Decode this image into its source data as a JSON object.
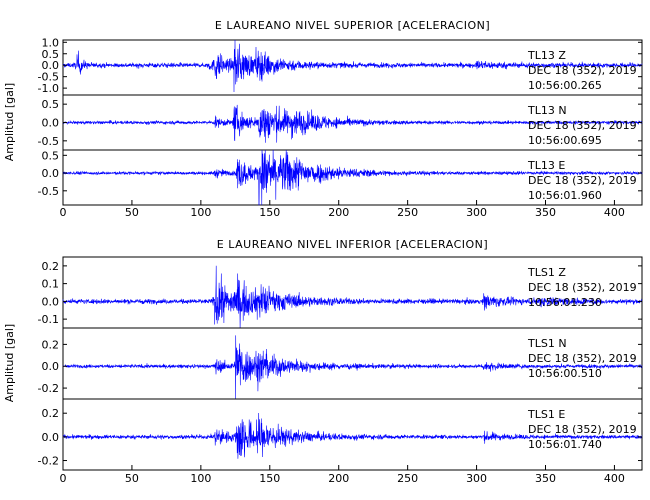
{
  "chart_data": [
    {
      "type": "line",
      "title": "E LAUREANO NIVEL SUPERIOR [ACELERACION]",
      "ylabel": "Amplitud [gal]",
      "xlim": [
        0,
        420
      ],
      "xticks": [
        "0",
        "50",
        "100",
        "150",
        "200",
        "250",
        "300",
        "350",
        "400"
      ],
      "series_color": "#0000ff",
      "traces": [
        {
          "ylim": [
            -1.3,
            1.1
          ],
          "yticks": [
            "1.0",
            "0.5",
            "0.0",
            "-0.5",
            "-1.0"
          ],
          "yticks_values": [
            1.0,
            0.5,
            0.0,
            -0.5,
            -1.0
          ],
          "noise": 0.09,
          "bursts": [
            [
              10,
              0.6,
              1.5
            ],
            [
              105,
              0.15,
              6
            ],
            [
              110,
              0.55,
              3
            ],
            [
              124,
              0.95,
              5
            ],
            [
              140,
              0.4,
              10
            ],
            [
              300,
              0.12,
              8
            ]
          ],
          "annotation": [
            "TL13   Z",
            "DEC 18 (352), 2019",
            "10:56:00.265"
          ]
        },
        {
          "ylim": [
            -0.75,
            0.75
          ],
          "yticks": [
            "0.5",
            "0.0",
            "-0.5"
          ],
          "yticks_values": [
            0.5,
            0.0,
            -0.5
          ],
          "noise": 0.04,
          "bursts": [
            [
              110,
              0.12,
              4
            ],
            [
              124,
              0.45,
              4
            ],
            [
              142,
              0.55,
              12
            ],
            [
              165,
              0.15,
              10
            ]
          ],
          "annotation": [
            "TL13   N",
            "DEC 18 (352), 2019",
            "10:56:00.695"
          ]
        },
        {
          "ylim": [
            -0.9,
            0.65
          ],
          "yticks": [
            "0.5",
            "0.0",
            "-0.5"
          ],
          "yticks_values": [
            0.5,
            0.0,
            -0.5
          ],
          "noise": 0.04,
          "bursts": [
            [
              110,
              0.1,
              4
            ],
            [
              126,
              0.45,
              5
            ],
            [
              142,
              0.75,
              12
            ],
            [
              160,
              0.2,
              12
            ]
          ],
          "annotation": [
            "TL13   E",
            "DEC 18 (352), 2019",
            "10:56:01.960"
          ]
        }
      ]
    },
    {
      "type": "line",
      "title": "E LAUREANO NIVEL INFERIOR [ACELERACION]",
      "ylabel": "Amplitud [gal]",
      "xlim": [
        0,
        420
      ],
      "xticks": [
        "0",
        "50",
        "100",
        "150",
        "200",
        "250",
        "300",
        "350",
        "400"
      ],
      "series_color": "#0000ff",
      "traces": [
        {
          "ylim": [
            -0.15,
            0.25
          ],
          "yticks": [
            "0.2",
            "0.1",
            "0.0",
            "-0.1"
          ],
          "yticks_values": [
            0.2,
            0.1,
            0.0,
            -0.1
          ],
          "noise": 0.012,
          "bursts": [
            [
              110,
              0.18,
              4
            ],
            [
              124,
              0.12,
              6
            ],
            [
              140,
              0.06,
              12
            ],
            [
              305,
              0.035,
              6
            ],
            [
              345,
              0.02,
              8
            ]
          ],
          "annotation": [
            "TLS1   Z",
            "DEC 18 (352), 2019",
            "10:56:01.230"
          ]
        },
        {
          "ylim": [
            -0.3,
            0.35
          ],
          "yticks": [
            "0.2",
            "0.0",
            "-0.2"
          ],
          "yticks_values": [
            0.2,
            0.0,
            -0.2
          ],
          "noise": 0.015,
          "bursts": [
            [
              110,
              0.06,
              4
            ],
            [
              125,
              0.28,
              5
            ],
            [
              140,
              0.1,
              12
            ],
            [
              305,
              0.03,
              6
            ]
          ],
          "annotation": [
            "TLS1   N",
            "DEC 18 (352), 2019",
            "10:56:00.510"
          ]
        },
        {
          "ylim": [
            -0.28,
            0.32
          ],
          "yticks": [
            "0.2",
            "0.0",
            "-0.2"
          ],
          "yticks_values": [
            0.2,
            0.0,
            -0.2
          ],
          "noise": 0.015,
          "bursts": [
            [
              110,
              0.08,
              4
            ],
            [
              126,
              0.25,
              5
            ],
            [
              140,
              0.1,
              12
            ],
            [
              305,
              0.03,
              6
            ]
          ],
          "annotation": [
            "TLS1   E",
            "DEC 18 (352), 2019",
            "10:56:01.740"
          ]
        }
      ]
    }
  ]
}
